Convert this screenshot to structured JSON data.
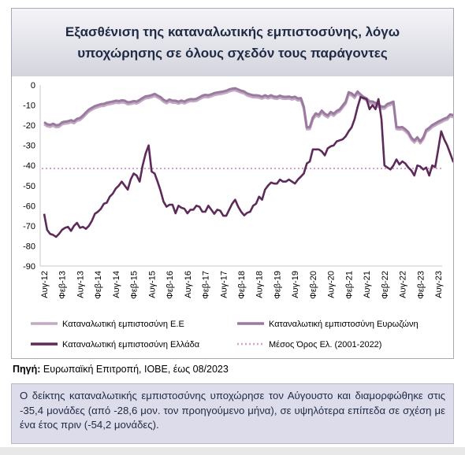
{
  "title": "Εξασθένιση της καταναλωτικής εμπιστοσύνης, λόγω\nυποχώρησης σε όλους σχεδόν τους παράγοντες",
  "source_label": "Πηγή:",
  "source_text": " Ευρωπαϊκή Επιτροπή, ΙΟΒΕ, έως 08/2023",
  "summary": "Ο δείκτης καταναλωτικής εμπιστοσύνης υποχώρησε τον Αύγουστο και διαμορφώθηκε στις -35,4 μονάδες (από -28,6 μον. τον προηγούμενο μήνα), σε υψηλότερα επίπεδα σε σχέση με ένα έτος πριν (-54,2 μονάδες).",
  "colors": {
    "eu": "#c2a8c2",
    "euro": "#9a7a9e",
    "greece": "#5e2a5a",
    "avg": "#d8a0d0"
  },
  "chart_data": {
    "type": "line",
    "x_labels": [
      "Αυγ-12",
      "Φεβ-13",
      "Αυγ-13",
      "Φεβ-14",
      "Αυγ-14",
      "Φεβ-15",
      "Αυγ-15",
      "Φεβ-16",
      "Αυγ-16",
      "Φεβ-17",
      "Αυγ-17",
      "Φεβ-18",
      "Αυγ-18",
      "Φεβ-19",
      "Αυγ-19",
      "Φεβ-20",
      "Αυγ-20",
      "Φεβ-21",
      "Αυγ-21",
      "Φεβ-22",
      "Αυγ-22",
      "Φεβ-23",
      "Αυγ-23"
    ],
    "y_ticks": [
      0,
      -10,
      -20,
      -30,
      -40,
      -50,
      -60,
      -70,
      -80,
      -90
    ],
    "ylim": [
      -90,
      0
    ],
    "legend": [
      {
        "key": "eu",
        "label": "Καταναλωτική εμπιστοσύνη Ε.Ε"
      },
      {
        "key": "euro",
        "label": "Καταναλωτική εμπιστοσύνη Ευρωζώνη"
      },
      {
        "key": "greece",
        "label": "Καταναλωτική εμπιστοσύνη Ελλάδα"
      },
      {
        "key": "avg",
        "label": "Μέσος Όρος Ελ. (2001-2022)"
      }
    ],
    "series": [
      {
        "key": "eu",
        "name": "Καταναλωτική εμπιστοσύνη Ε.Ε",
        "values": [
          -19.5,
          -20.5,
          -20.8,
          -20.2,
          -21,
          -20.8,
          -19.6,
          -19.2,
          -19,
          -18.5,
          -19,
          -17.8,
          -17.4,
          -16.2,
          -14.6,
          -13.2,
          -12.3,
          -11.5,
          -11,
          -10.5,
          -10.4,
          -9.8,
          -9.5,
          -9.2,
          -8.8,
          -9,
          -8.6,
          -8.8,
          -9.6,
          -9.4,
          -9,
          -9.2,
          -8.4,
          -7.4,
          -6.6,
          -6.4,
          -6,
          -5.4,
          -6.2,
          -7,
          -8.3,
          -9.1,
          -8.2,
          -8.8,
          -8.8,
          -9.3,
          -8.7,
          -9.2,
          -8.4,
          -8,
          -8.1,
          -7.9,
          -7.1,
          -6.3,
          -5.9,
          -6.1,
          -5.6,
          -5,
          -4.7,
          -4.5,
          -4.2,
          -3.8,
          -3.2,
          -2.8,
          -2.6,
          -3.2,
          -3.8,
          -4.2,
          -5.2,
          -5.7,
          -6.1,
          -6.1,
          -6.3,
          -6.8,
          -6.1,
          -6.7,
          -6.1,
          -6.7,
          -6.9,
          -6.3,
          -6.8,
          -6.9,
          -6.7,
          -7.2,
          -6.8,
          -7.7,
          -7.5,
          -11.8,
          -22,
          -21.9,
          -17.2,
          -15.1,
          -15.8,
          -13.7,
          -15.3,
          -16.1,
          -14.4,
          -15.3,
          -13.9,
          -13.1,
          -11.2,
          -9.3,
          -4.6,
          -5.2,
          -6.4,
          -4.2,
          -5.7,
          -6.9,
          -7.7,
          -9.1,
          -9.2,
          -9.9,
          -10.8,
          -11.7,
          -11.8,
          -10.4,
          -9.9,
          -9.2,
          -21.9,
          -22.1,
          -21.9,
          -23,
          -24.4,
          -27.1,
          -28.6,
          -27,
          -29,
          -27,
          -23.3,
          -22.3,
          -20.9,
          -20.1,
          -19.2,
          -18.5,
          -17.7,
          -17.2,
          -15.6,
          -15.9,
          -17.1,
          -17.6
        ],
        "note": "values approximate, monthly from Aug-2012"
      },
      {
        "key": "euro",
        "name": "Καταναλωτική εμπιστοσύνη Ευρωζώνη",
        "values": [
          -18.5,
          -19.5,
          -19.8,
          -19.2,
          -20,
          -19.8,
          -18.6,
          -18.2,
          -18,
          -17.5,
          -18,
          -16.8,
          -16.4,
          -15.2,
          -13.6,
          -12.2,
          -11.3,
          -10.5,
          -10,
          -9.5,
          -9.4,
          -8.8,
          -8.5,
          -8.2,
          -7.8,
          -8,
          -7.6,
          -7.8,
          -8.6,
          -8.4,
          -8,
          -8.2,
          -7.4,
          -6.4,
          -5.6,
          -5.4,
          -5,
          -4.4,
          -5.2,
          -6,
          -7.3,
          -8.1,
          -7.2,
          -7.8,
          -7.8,
          -8.3,
          -7.7,
          -8.2,
          -7.4,
          -7,
          -7.1,
          -6.9,
          -6.1,
          -5.3,
          -4.9,
          -5.1,
          -4.6,
          -4,
          -3.7,
          -3.5,
          -3.2,
          -2.8,
          -2.2,
          -1.8,
          -1.6,
          -2.2,
          -2.8,
          -3.2,
          -4.2,
          -4.7,
          -5.1,
          -5.1,
          -5.3,
          -5.8,
          -5.1,
          -5.7,
          -5.1,
          -5.7,
          -5.9,
          -5.3,
          -5.8,
          -5.9,
          -5.7,
          -6.2,
          -5.8,
          -6.7,
          -6.5,
          -10.8,
          -21,
          -20.9,
          -16.2,
          -14.1,
          -14.8,
          -12.7,
          -14.3,
          -15.1,
          -13.4,
          -14.3,
          -12.9,
          -12.1,
          -10.2,
          -8.3,
          -3.6,
          -4.2,
          -5.4,
          -3.2,
          -4.7,
          -5.9,
          -6.7,
          -8.1,
          -8.2,
          -8.9,
          -9.8,
          -10.7,
          -10.8,
          -9.4,
          -8.9,
          -8.2,
          -20.9,
          -21.1,
          -20.9,
          -22,
          -23.4,
          -26.1,
          -27.6,
          -26,
          -28,
          -26,
          -22.3,
          -21.3,
          -19.9,
          -19.1,
          -18.2,
          -17.5,
          -16.7,
          -16.2,
          -14.6,
          -14.9,
          -16.1,
          -16.6
        ],
        "note": "values approximate, monthly from Aug-2012"
      },
      {
        "key": "greece",
        "name": "Καταναλωτική εμπιστοσύνη Ελλάδα",
        "values": [
          -64,
          -72,
          -74,
          -74.5,
          -75.5,
          -74,
          -72,
          -71,
          -70.5,
          -72.5,
          -70,
          -68.5,
          -71,
          -70.5,
          -71.5,
          -70,
          -67.5,
          -64,
          -63,
          -61.5,
          -59,
          -58.5,
          -55.5,
          -54,
          -51.5,
          -50,
          -48,
          -50,
          -52,
          -47,
          -44,
          -45,
          -48,
          -40,
          -34,
          -30,
          -43,
          -44,
          -48,
          -52.5,
          -58,
          -60.5,
          -59.5,
          -59.5,
          -63.8,
          -60,
          -61,
          -61.5,
          -63.8,
          -62,
          -62,
          -60,
          -60.5,
          -63,
          -63,
          -60,
          -62,
          -64,
          -62,
          -62.5,
          -65,
          -65,
          -62,
          -59,
          -57,
          -60.5,
          -63,
          -64.8,
          -63.5,
          -63,
          -60,
          -59,
          -55.5,
          -57,
          -52,
          -50,
          -48.5,
          -49,
          -49,
          -47,
          -48,
          -48,
          -47,
          -48,
          -49,
          -47,
          -45.5,
          -44,
          -39,
          -38,
          -32,
          -32,
          -32,
          -33,
          -35,
          -31.5,
          -30.5,
          -30,
          -28,
          -27.5,
          -27,
          -25.5,
          -23,
          -21,
          -17,
          -11,
          -6,
          -6.5,
          -7,
          -12,
          -10,
          -12,
          -7,
          -17,
          -40,
          -41,
          -42,
          -40,
          -37,
          -39.5,
          -38,
          -39,
          -41,
          -42.5,
          -45,
          -40,
          -40.5,
          -42,
          -41,
          -45,
          -40,
          -40.8,
          -32,
          -23,
          -27,
          -30,
          -34,
          -38,
          -39,
          -40,
          -40.5,
          -39,
          -41,
          -41.5,
          -50,
          -53,
          -54,
          -52,
          -51,
          -53,
          -55,
          -54.2,
          -57,
          -52,
          -49,
          -46,
          -44,
          -47,
          -42,
          -43,
          -38,
          -32,
          -30,
          -28.6,
          -35.4
        ],
        "note": "values approximate, monthly from Aug-2012"
      }
    ],
    "average_value": -41.5
  }
}
